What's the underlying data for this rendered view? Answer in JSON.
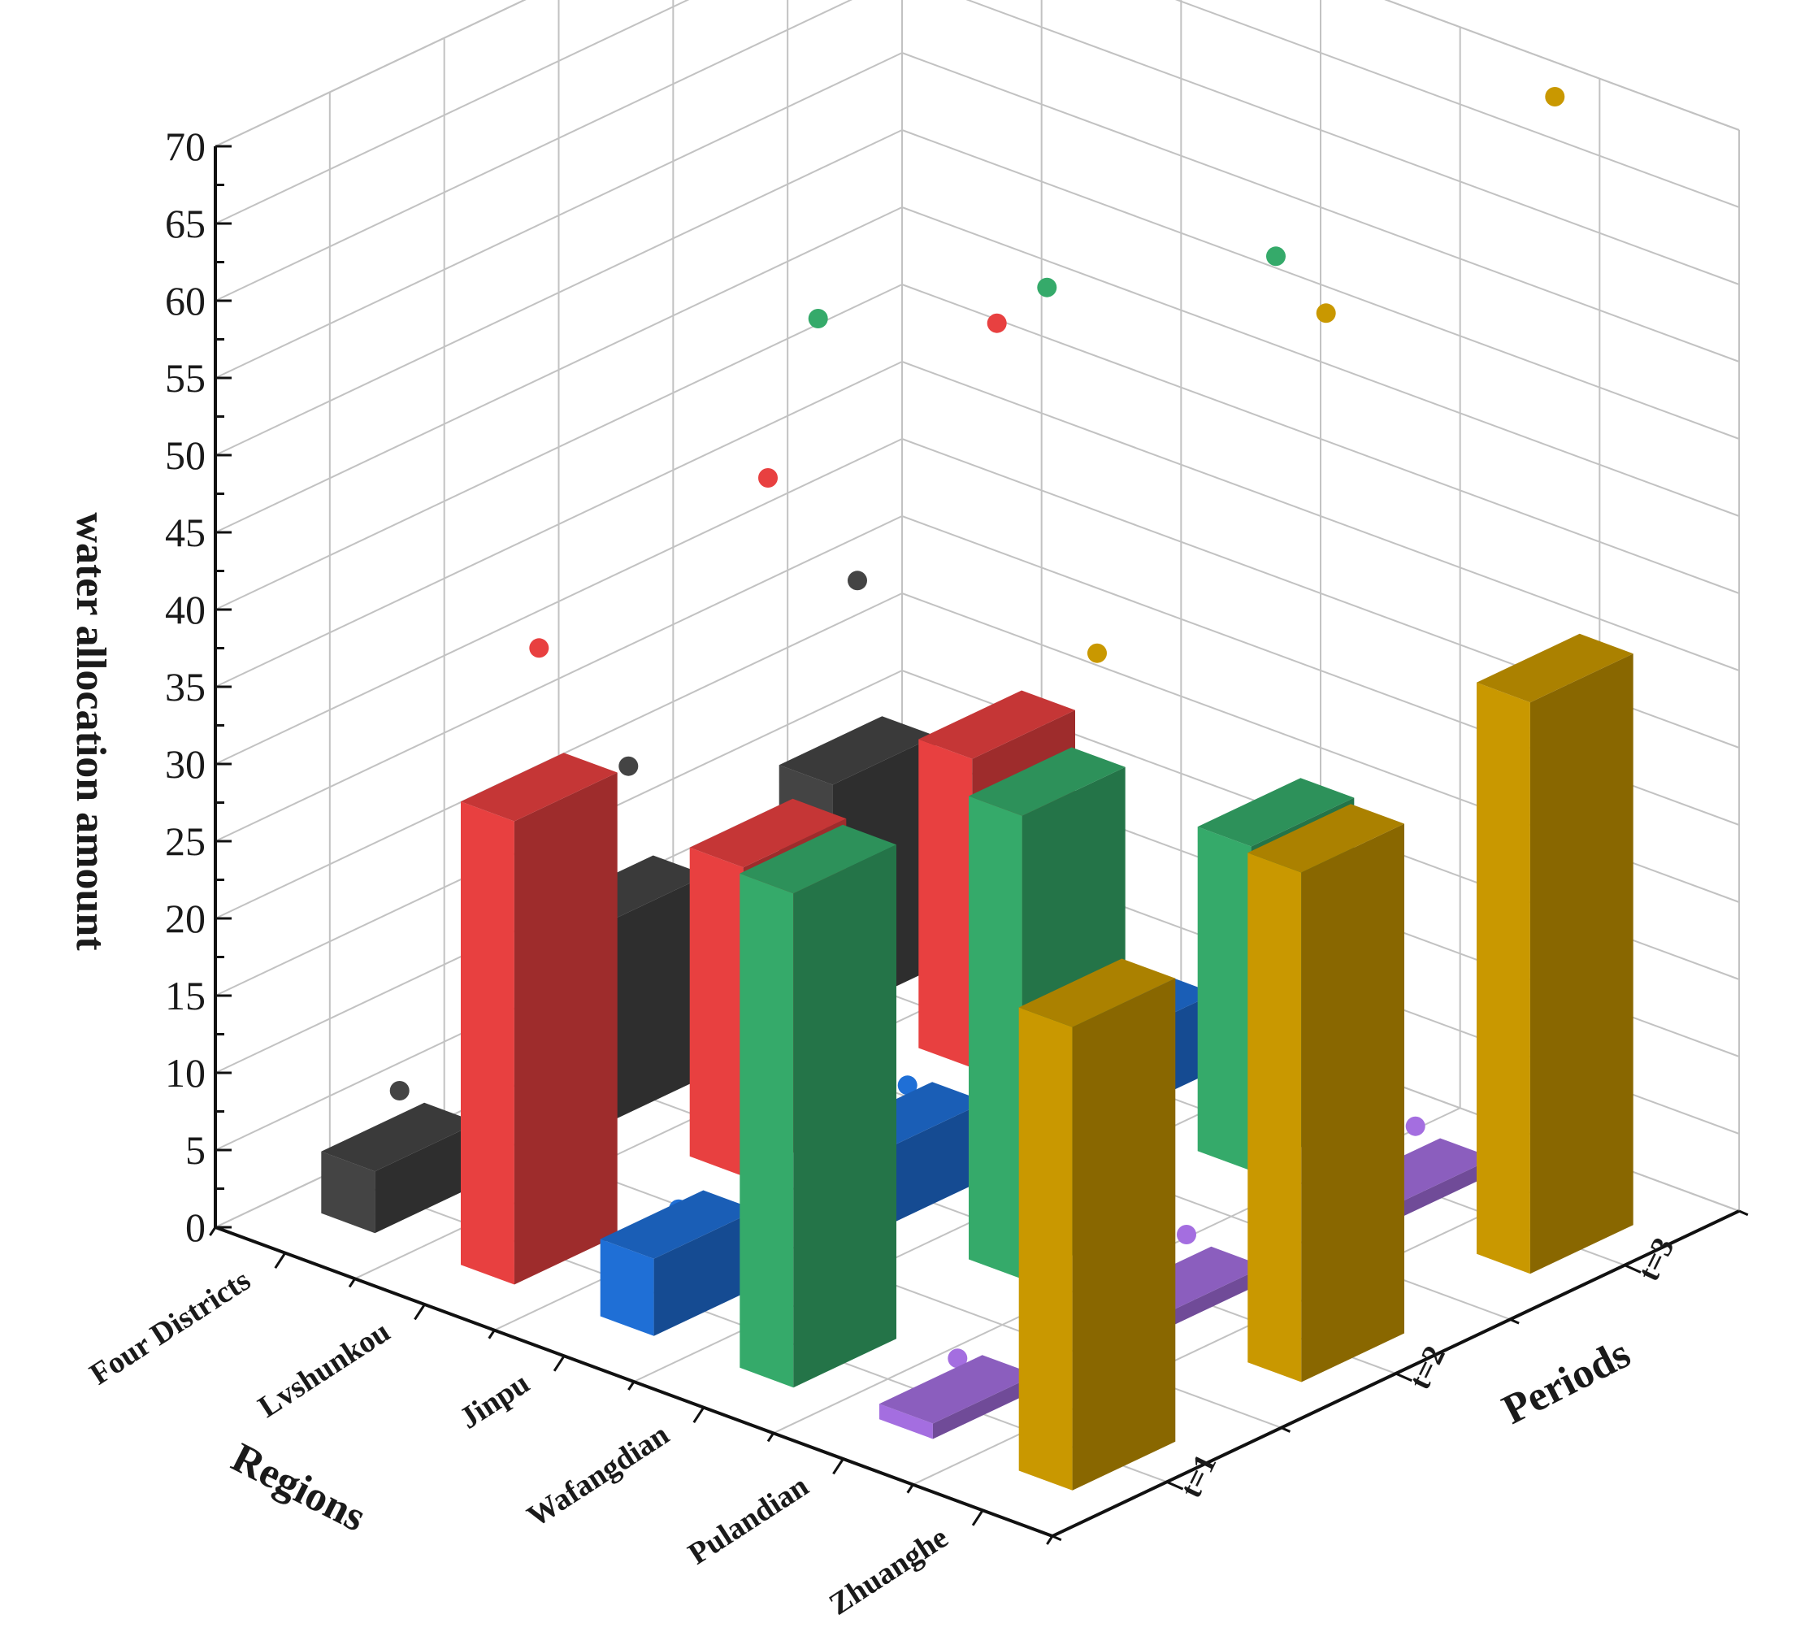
{
  "chart_data": {
    "type": "bar",
    "subtype": "3d-bar-with-points",
    "xlabel": "Regions",
    "ylabel": "Periods",
    "zlabel": "water allocation amount",
    "zlim": [
      0,
      70
    ],
    "z_ticks": [
      "0",
      "5",
      "10",
      "15",
      "20",
      "25",
      "30",
      "35",
      "40",
      "45",
      "50",
      "55",
      "60",
      "65",
      "70"
    ],
    "grid": true,
    "categories": [
      "Four Districts",
      "Lvshunkou",
      "Jinpu",
      "Wafangdian",
      "Pulandian",
      "Zhuanghe"
    ],
    "periods": [
      "t=1",
      "t=2",
      "t=3"
    ],
    "series": [
      {
        "color": "#444444",
        "bars": [
          4,
          13,
          15
        ],
        "points": [
          7,
          21,
          26
        ]
      },
      {
        "color": "#e84040",
        "bars": [
          30,
          20,
          20
        ],
        "points": [
          39,
          43,
          46
        ]
      },
      {
        "color": "#1f6fd6",
        "bars": [
          5,
          5,
          5
        ],
        "points": [
          6,
          7,
          7
        ]
      },
      {
        "color": "#35aa6a",
        "bars": [
          32,
          30,
          21
        ],
        "points": [
          67,
          62,
          57
        ]
      },
      {
        "color": "#a46ee0",
        "bars": [
          1,
          1,
          1
        ],
        "points": [
          3,
          4,
          4
        ]
      },
      {
        "color": "#c99800",
        "bars": [
          30,
          33,
          37
        ],
        "points": [
          52,
          67,
          74
        ]
      }
    ]
  }
}
